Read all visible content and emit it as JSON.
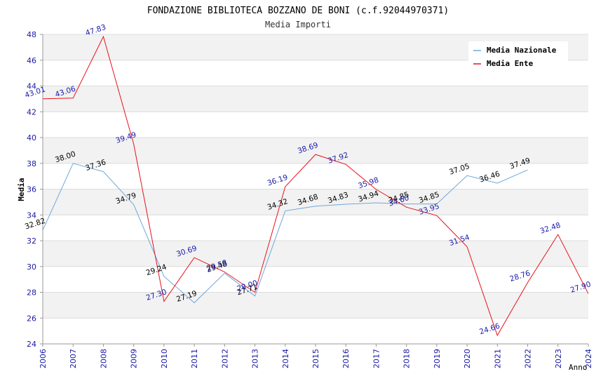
{
  "chart_data": {
    "type": "line",
    "title": "FONDAZIONE BIBLIOTECA BOZZANO DE BONI (c.f.92044970371)",
    "subtitle": "Media Importi",
    "xlabel": "Anno",
    "ylabel": "Media",
    "ylim": [
      24,
      48
    ],
    "yticks": [
      "24",
      "26",
      "28",
      "30",
      "32",
      "34",
      "36",
      "38",
      "40",
      "42",
      "44",
      "46",
      "48"
    ],
    "x": [
      "2006",
      "2007",
      "2008",
      "2009",
      "2010",
      "2011",
      "2012",
      "2013",
      "2014",
      "2015",
      "2016",
      "2017",
      "2018",
      "2019",
      "2020",
      "2021",
      "2022",
      "2023",
      "2024"
    ],
    "grid": "horizontal",
    "legend_position": "top-right",
    "series": [
      {
        "name": "Media Nazionale",
        "color": "#6fa8dc",
        "label_color": "#000000",
        "values": [
          32.82,
          38.0,
          37.36,
          34.79,
          29.24,
          27.19,
          29.48,
          27.71,
          34.32,
          34.68,
          34.83,
          34.94,
          34.85,
          34.85,
          37.05,
          36.46,
          37.49,
          null,
          null
        ],
        "labels": [
          "32.82",
          "38.00",
          "37.36",
          "34.79",
          "29.24",
          "27.19",
          "29.48",
          "27.71",
          "34.32",
          "34.68",
          "34.83",
          "34.94",
          "34.85",
          "34.85",
          "37.05",
          "36.46",
          "37.49",
          "",
          ""
        ]
      },
      {
        "name": "Media Ente",
        "color": "#e8121c",
        "label_color": "#1a1aa6",
        "values": [
          43.01,
          43.06,
          47.83,
          39.49,
          27.3,
          30.69,
          29.58,
          28.0,
          36.19,
          38.69,
          37.92,
          35.98,
          34.6,
          33.95,
          31.54,
          24.66,
          28.76,
          32.48,
          27.9
        ],
        "labels": [
          "43.01",
          "43.06",
          "47.83",
          "39.49",
          "27.30",
          "30.69",
          "29.58",
          "28.00",
          "36.19",
          "38.69",
          "37.92",
          "35.98",
          "34.60",
          "33.95",
          "31.54",
          "24.66",
          "28.76",
          "32.48",
          "27.90"
        ]
      }
    ]
  }
}
